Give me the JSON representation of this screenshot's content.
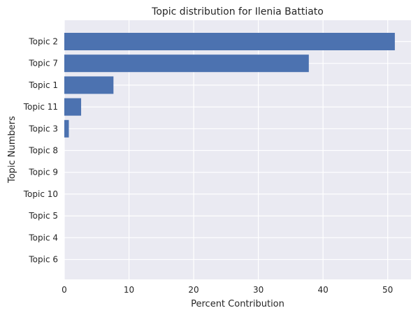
{
  "chart_data": {
    "type": "bar",
    "orientation": "horizontal",
    "title": "Topic distribution for Ilenia Battiato",
    "xlabel": "Percent Contribution",
    "ylabel": "Topic Numbers",
    "categories": [
      "Topic 2",
      "Topic 7",
      "Topic 1",
      "Topic 11",
      "Topic 3",
      "Topic 8",
      "Topic 9",
      "Topic 10",
      "Topic 5",
      "Topic 4",
      "Topic 6"
    ],
    "values": [
      51.1,
      37.8,
      7.6,
      2.6,
      0.7,
      0,
      0,
      0,
      0,
      0,
      0
    ],
    "xlim": [
      0,
      53.6
    ],
    "xticks": [
      0,
      10,
      20,
      30,
      40,
      50
    ],
    "grid": true,
    "bar_color": "#4c72b0",
    "background_color": "#eaeaf2",
    "grid_color": "#ffffff"
  }
}
